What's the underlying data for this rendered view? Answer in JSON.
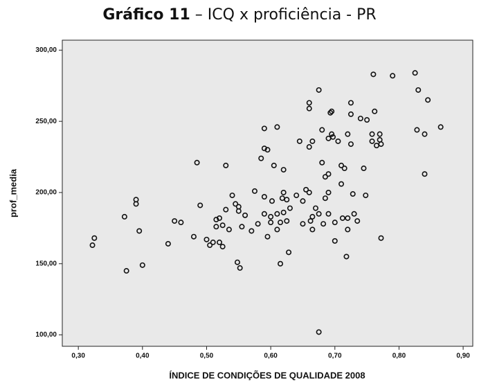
{
  "chart_data": {
    "type": "scatter",
    "title": "Gráfico 11",
    "subtitle": " – ICQ x proficiência - PR",
    "x_label": "ÍNDICE DE CONDIÇÕES DE QUALIDADE 2008",
    "y_label": "prof_media",
    "color": "#111111",
    "xlim": [
      0.275,
      0.915
    ],
    "ylim": [
      92,
      307
    ],
    "xticks": [
      {
        "value": 0.3,
        "label": "0,30"
      },
      {
        "value": 0.4,
        "label": "0,40"
      },
      {
        "value": 0.5,
        "label": "0,50"
      },
      {
        "value": 0.6,
        "label": "0,60"
      },
      {
        "value": 0.7,
        "label": "0,70"
      },
      {
        "value": 0.8,
        "label": "0,80"
      },
      {
        "value": 0.9,
        "label": "0,90"
      }
    ],
    "yticks": [
      {
        "value": 100,
        "label": "100,00"
      },
      {
        "value": 150,
        "label": "150,00"
      },
      {
        "value": 200,
        "label": "200,00"
      },
      {
        "value": 250,
        "label": "250,00"
      },
      {
        "value": 300,
        "label": "300,00"
      }
    ],
    "x": [
      0.325,
      0.322,
      0.372,
      0.375,
      0.39,
      0.39,
      0.395,
      0.4,
      0.44,
      0.45,
      0.46,
      0.485,
      0.49,
      0.48,
      0.5,
      0.505,
      0.51,
      0.515,
      0.515,
      0.52,
      0.52,
      0.525,
      0.525,
      0.53,
      0.53,
      0.535,
      0.54,
      0.545,
      0.548,
      0.55,
      0.55,
      0.552,
      0.555,
      0.56,
      0.57,
      0.575,
      0.58,
      0.585,
      0.59,
      0.59,
      0.59,
      0.59,
      0.595,
      0.595,
      0.6,
      0.6,
      0.602,
      0.605,
      0.61,
      0.61,
      0.61,
      0.615,
      0.615,
      0.618,
      0.62,
      0.62,
      0.62,
      0.625,
      0.625,
      0.628,
      0.63,
      0.64,
      0.645,
      0.65,
      0.65,
      0.655,
      0.66,
      0.66,
      0.66,
      0.66,
      0.662,
      0.665,
      0.665,
      0.665,
      0.67,
      0.675,
      0.675,
      0.675,
      0.68,
      0.68,
      0.682,
      0.685,
      0.685,
      0.69,
      0.69,
      0.69,
      0.69,
      0.693,
      0.695,
      0.695,
      0.697,
      0.7,
      0.7,
      0.705,
      0.71,
      0.71,
      0.712,
      0.715,
      0.718,
      0.72,
      0.72,
      0.72,
      0.725,
      0.725,
      0.725,
      0.728,
      0.73,
      0.735,
      0.74,
      0.745,
      0.748,
      0.75,
      0.758,
      0.758,
      0.76,
      0.762,
      0.765,
      0.77,
      0.77,
      0.772,
      0.772,
      0.79,
      0.825,
      0.828,
      0.83,
      0.84,
      0.84,
      0.845,
      0.865
    ],
    "values": [
      168,
      163,
      183,
      145,
      195,
      192,
      173,
      149,
      164,
      180,
      179,
      221,
      191,
      169,
      167,
      163,
      165,
      176,
      181,
      182,
      165,
      162,
      177,
      219,
      188,
      174,
      198,
      192,
      151,
      190,
      187,
      147,
      176,
      184,
      173,
      201,
      178,
      224,
      245,
      231,
      185,
      197,
      230,
      169,
      183,
      179,
      194,
      219,
      246,
      174,
      185,
      179,
      150,
      196,
      216,
      200,
      186,
      180,
      195,
      158,
      189,
      198,
      236,
      194,
      178,
      202,
      263,
      259,
      232,
      200,
      180,
      183,
      174,
      236,
      189,
      272,
      185,
      102,
      244,
      221,
      178,
      211,
      196,
      238,
      213,
      200,
      185,
      256,
      257,
      241,
      239,
      166,
      179,
      236,
      219,
      206,
      182,
      217,
      155,
      241,
      182,
      174,
      263,
      255,
      234,
      199,
      185,
      180,
      252,
      217,
      198,
      251,
      241,
      236,
      283,
      257,
      233,
      241,
      237,
      234,
      168,
      282,
      284,
      244,
      272,
      241,
      213,
      265,
      246
    ]
  }
}
